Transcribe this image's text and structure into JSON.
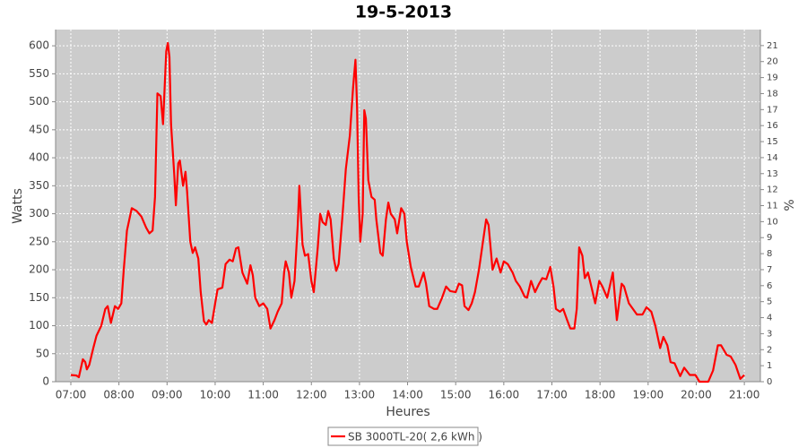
{
  "chart_data": {
    "type": "line",
    "title": "19-5-2013",
    "x_label": "Heures",
    "y_label": "Watts",
    "y2_label": "%",
    "xlim": [
      401,
      1280
    ],
    "xticks": [
      {
        "value": 420,
        "label": "07:00"
      },
      {
        "value": 480,
        "label": "08:00"
      },
      {
        "value": 540,
        "label": "09:00"
      },
      {
        "value": 600,
        "label": "10:00"
      },
      {
        "value": 660,
        "label": "11:00"
      },
      {
        "value": 720,
        "label": "12:00"
      },
      {
        "value": 780,
        "label": "13:00"
      },
      {
        "value": 840,
        "label": "14:00"
      },
      {
        "value": 900,
        "label": "15:00"
      },
      {
        "value": 960,
        "label": "16:00"
      },
      {
        "value": 1020,
        "label": "17:00"
      },
      {
        "value": 1080,
        "label": "18:00"
      },
      {
        "value": 1140,
        "label": "19:00"
      },
      {
        "value": 1200,
        "label": "20:00"
      },
      {
        "value": 1260,
        "label": "21:00"
      }
    ],
    "ylim": [
      0,
      629
    ],
    "yticks": [
      0,
      50,
      100,
      150,
      200,
      250,
      300,
      350,
      400,
      450,
      500,
      550,
      600
    ],
    "y2lim": [
      0,
      22
    ],
    "y2ticks": [
      0,
      1,
      2,
      3,
      4,
      5,
      6,
      7,
      8,
      9,
      10,
      11,
      12,
      13,
      14,
      15,
      16,
      17,
      18,
      19,
      20,
      21
    ],
    "grid": true,
    "legend": "bottom",
    "x": [
      420,
      427,
      430,
      435,
      438,
      440,
      443,
      448,
      452,
      458,
      463,
      466,
      470,
      475,
      479,
      483,
      486,
      490,
      496,
      502,
      508,
      514,
      518,
      522,
      525,
      528,
      532,
      535,
      539,
      541,
      543,
      545,
      549,
      551,
      554,
      556,
      560,
      563,
      565,
      569,
      572,
      575,
      579,
      582,
      586,
      589,
      592,
      596,
      600,
      603,
      609,
      613,
      618,
      622,
      626,
      629,
      634,
      640,
      644,
      647,
      650,
      655,
      660,
      665,
      669,
      674,
      678,
      683,
      686,
      688,
      692,
      695,
      699,
      703,
      705,
      709,
      712,
      716,
      720,
      723,
      728,
      731,
      734,
      738,
      741,
      744,
      748,
      751,
      754,
      759,
      763,
      768,
      772,
      775,
      777,
      779,
      781,
      784,
      786,
      788,
      791,
      795,
      799,
      801,
      806,
      809,
      813,
      816,
      819,
      824,
      827,
      832,
      836,
      839,
      844,
      850,
      854,
      860,
      863,
      867,
      873,
      877,
      883,
      888,
      893,
      900,
      904,
      908,
      911,
      916,
      920,
      924,
      929,
      933,
      938,
      941,
      946,
      951,
      956,
      960,
      965,
      971,
      975,
      980,
      986,
      989,
      994,
      999,
      1004,
      1008,
      1013,
      1018,
      1022,
      1025,
      1030,
      1034,
      1039,
      1043,
      1048,
      1051,
      1054,
      1058,
      1061,
      1065,
      1070,
      1074,
      1079,
      1083,
      1089,
      1096,
      1101,
      1107,
      1110,
      1116,
      1121,
      1126,
      1133,
      1138,
      1144,
      1149,
      1155,
      1159,
      1164,
      1168,
      1173,
      1180,
      1185,
      1192,
      1199,
      1204,
      1215,
      1221,
      1227,
      1231,
      1238,
      1243,
      1249,
      1255,
      1260
    ],
    "series": [
      {
        "name": "SB 3000TL-20( 2,6 kWh )",
        "color": "#ff0000",
        "values": [
          12,
          11,
          8,
          40,
          35,
          22,
          30,
          60,
          82,
          100,
          130,
          135,
          105,
          135,
          130,
          140,
          200,
          270,
          310,
          305,
          295,
          275,
          265,
          270,
          330,
          515,
          510,
          460,
          590,
          605,
          580,
          460,
          370,
          315,
          390,
          395,
          350,
          375,
          340,
          250,
          230,
          240,
          220,
          160,
          108,
          102,
          110,
          105,
          140,
          165,
          168,
          210,
          218,
          215,
          238,
          240,
          195,
          175,
          208,
          190,
          150,
          135,
          140,
          130,
          95,
          110,
          125,
          140,
          195,
          215,
          195,
          150,
          180,
          280,
          350,
          245,
          225,
          228,
          180,
          160,
          240,
          300,
          285,
          280,
          305,
          290,
          220,
          198,
          210,
          300,
          380,
          440,
          525,
          575,
          490,
          330,
          250,
          300,
          485,
          470,
          360,
          330,
          325,
          290,
          230,
          225,
          290,
          320,
          300,
          290,
          265,
          310,
          300,
          250,
          205,
          170,
          170,
          195,
          175,
          135,
          130,
          130,
          150,
          170,
          162,
          160,
          175,
          172,
          135,
          128,
          140,
          160,
          200,
          240,
          290,
          280,
          200,
          220,
          195,
          215,
          210,
          195,
          180,
          170,
          152,
          150,
          180,
          160,
          175,
          185,
          183,
          205,
          170,
          130,
          125,
          130,
          110,
          95,
          95,
          130,
          240,
          225,
          185,
          195,
          165,
          140,
          180,
          170,
          150,
          195,
          110,
          175,
          170,
          140,
          130,
          120,
          120,
          133,
          125,
          100,
          60,
          80,
          65,
          35,
          33,
          10,
          25,
          12,
          12,
          0,
          0,
          20,
          65,
          65,
          48,
          45,
          30,
          5,
          12
        ]
      }
    ]
  }
}
